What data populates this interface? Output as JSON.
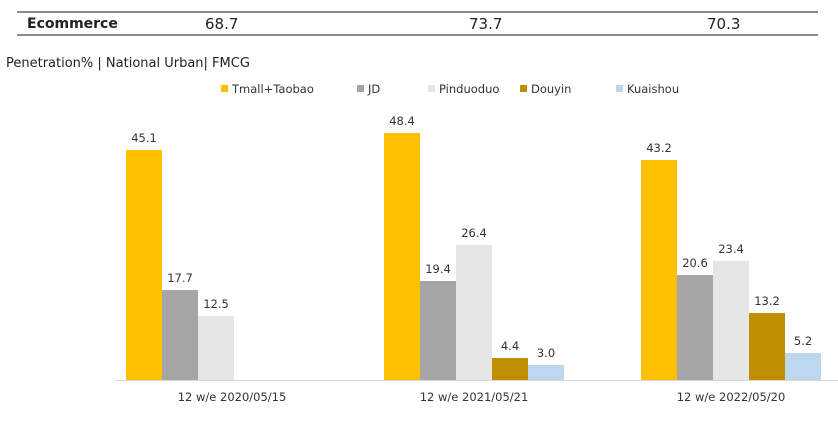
{
  "table": {
    "row_label": "Ecommerce",
    "values": [
      "68.7",
      "73.7",
      "70.3"
    ]
  },
  "subtitle": "Penetration% | National Urban| FMCG",
  "colors": {
    "Tmall+Taobao": "#FFC000",
    "JD": "#A5A5A5",
    "Pinduoduo": "#E6E6E6",
    "Douyin": "#BF8F00",
    "Kuaishou": "#BDD7EE"
  },
  "chart_data": {
    "type": "bar",
    "title": "Penetration% | National Urban| FMCG",
    "xlabel": "",
    "ylabel": "",
    "ylim": [
      0,
      50
    ],
    "grid": false,
    "legend_position": "top",
    "categories": [
      "12 w/e 2020/05/15",
      "12 w/e 2021/05/21",
      "12 w/e 2022/05/20"
    ],
    "series": [
      {
        "name": "Tmall+Taobao",
        "color": "#FFC000",
        "values": [
          45.1,
          48.4,
          43.2
        ]
      },
      {
        "name": "JD",
        "color": "#A5A5A5",
        "values": [
          17.7,
          19.4,
          20.6
        ]
      },
      {
        "name": "Pinduoduo",
        "color": "#E6E6E6",
        "values": [
          12.5,
          26.4,
          23.4
        ]
      },
      {
        "name": "Douyin",
        "color": "#BF8F00",
        "values": [
          null,
          4.4,
          13.2
        ]
      },
      {
        "name": "Kuaishou",
        "color": "#BDD7EE",
        "values": [
          null,
          3.0,
          5.2
        ]
      }
    ],
    "data_labels": [
      [
        "45.1",
        "17.7",
        "12.5",
        "",
        ""
      ],
      [
        "48.4",
        "19.4",
        "26.4",
        "4.4",
        "3.0"
      ],
      [
        "43.2",
        "20.6",
        "23.4",
        "13.2",
        "5.2"
      ]
    ]
  }
}
